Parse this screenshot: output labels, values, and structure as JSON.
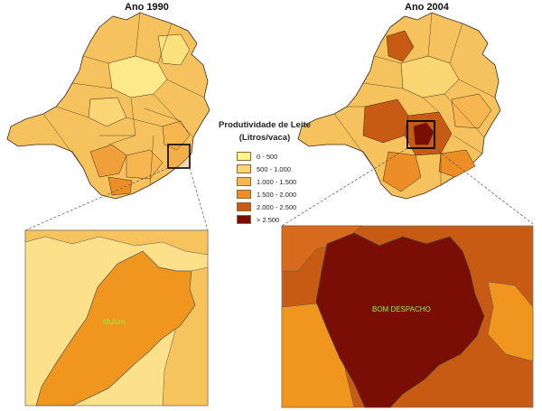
{
  "maps": {
    "left_title": "Ano 1990",
    "right_title": "Ano 2004"
  },
  "legend": {
    "title_line1": "Produtividade de Leite",
    "title_line2": "(Litros/vaca)",
    "items": [
      {
        "label": "0 - 500",
        "color": "#fdf48e"
      },
      {
        "label": "500 - 1.000",
        "color": "#fad673"
      },
      {
        "label": "1.000 - 1.500",
        "color": "#f7b64f"
      },
      {
        "label": "1.500 - 2.000",
        "color": "#ec8d26"
      },
      {
        "label": "2.000 - 2.500",
        "color": "#c75b14"
      },
      {
        "label": "> 2.500",
        "color": "#7a0e06"
      }
    ]
  },
  "insets": {
    "left_city": "Mutum",
    "right_city": "BOM DESPACHO"
  }
}
